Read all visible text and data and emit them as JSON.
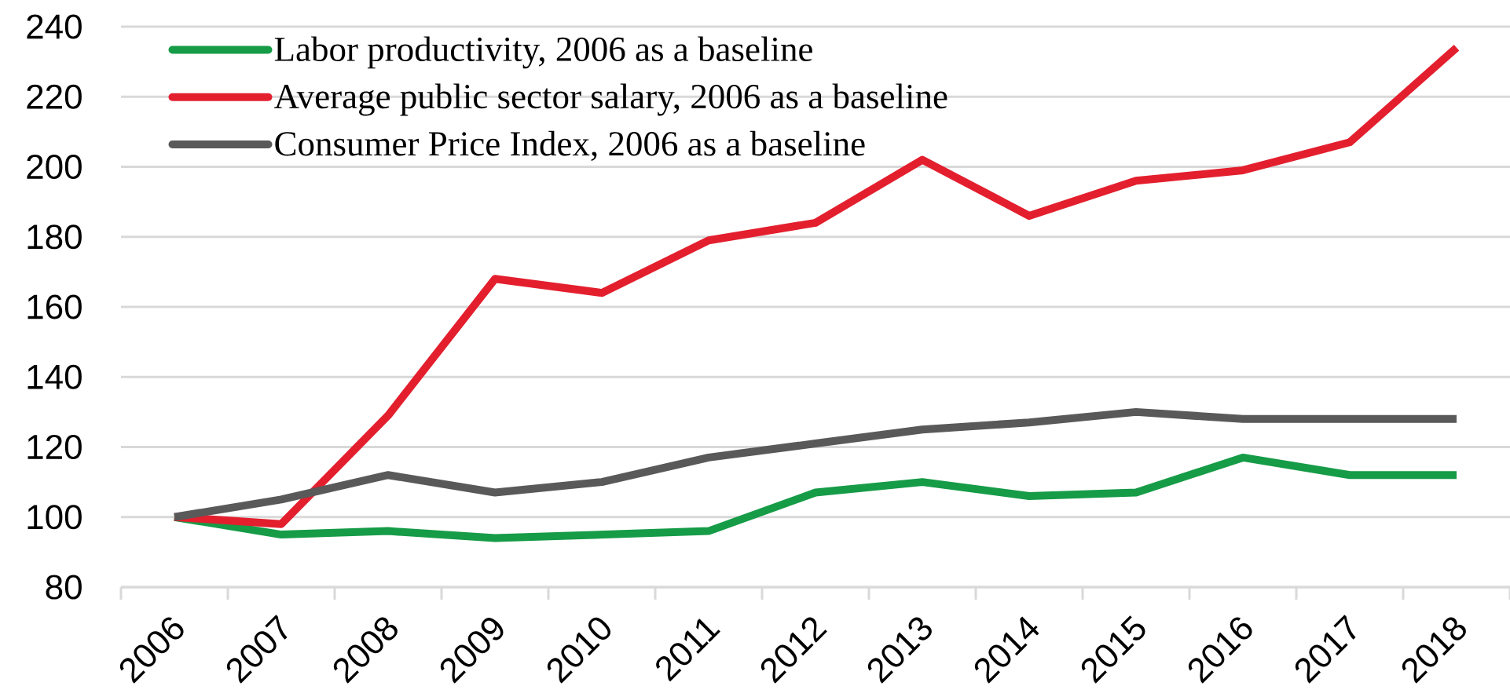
{
  "chart_data": {
    "type": "line",
    "categories": [
      "2006",
      "2007",
      "2008",
      "2009",
      "2010",
      "2011",
      "2012",
      "2013",
      "2014",
      "2015",
      "2016",
      "2017",
      "2018"
    ],
    "series": [
      {
        "name": "Labor productivity, 2006 as a baseline",
        "color": "#169b47",
        "values": [
          100,
          95,
          96,
          94,
          95,
          96,
          107,
          110,
          106,
          107,
          117,
          112,
          112
        ]
      },
      {
        "name": "Average public sector salary, 2006 as a baseline",
        "color": "#e31f2e",
        "values": [
          100,
          98,
          129,
          168,
          164,
          179,
          184,
          202,
          186,
          196,
          199,
          207,
          234
        ]
      },
      {
        "name": "Consumer Price Index, 2006 as a baseline",
        "color": "#595959",
        "values": [
          100,
          105,
          112,
          107,
          110,
          117,
          121,
          125,
          127,
          130,
          128,
          128,
          128
        ]
      }
    ],
    "ylim": [
      80,
      240
    ],
    "yticks": [
      80,
      100,
      120,
      140,
      160,
      180,
      200,
      220,
      240
    ],
    "grid": "y",
    "legend": "top left",
    "marker": "none",
    "line_style": "solid"
  }
}
